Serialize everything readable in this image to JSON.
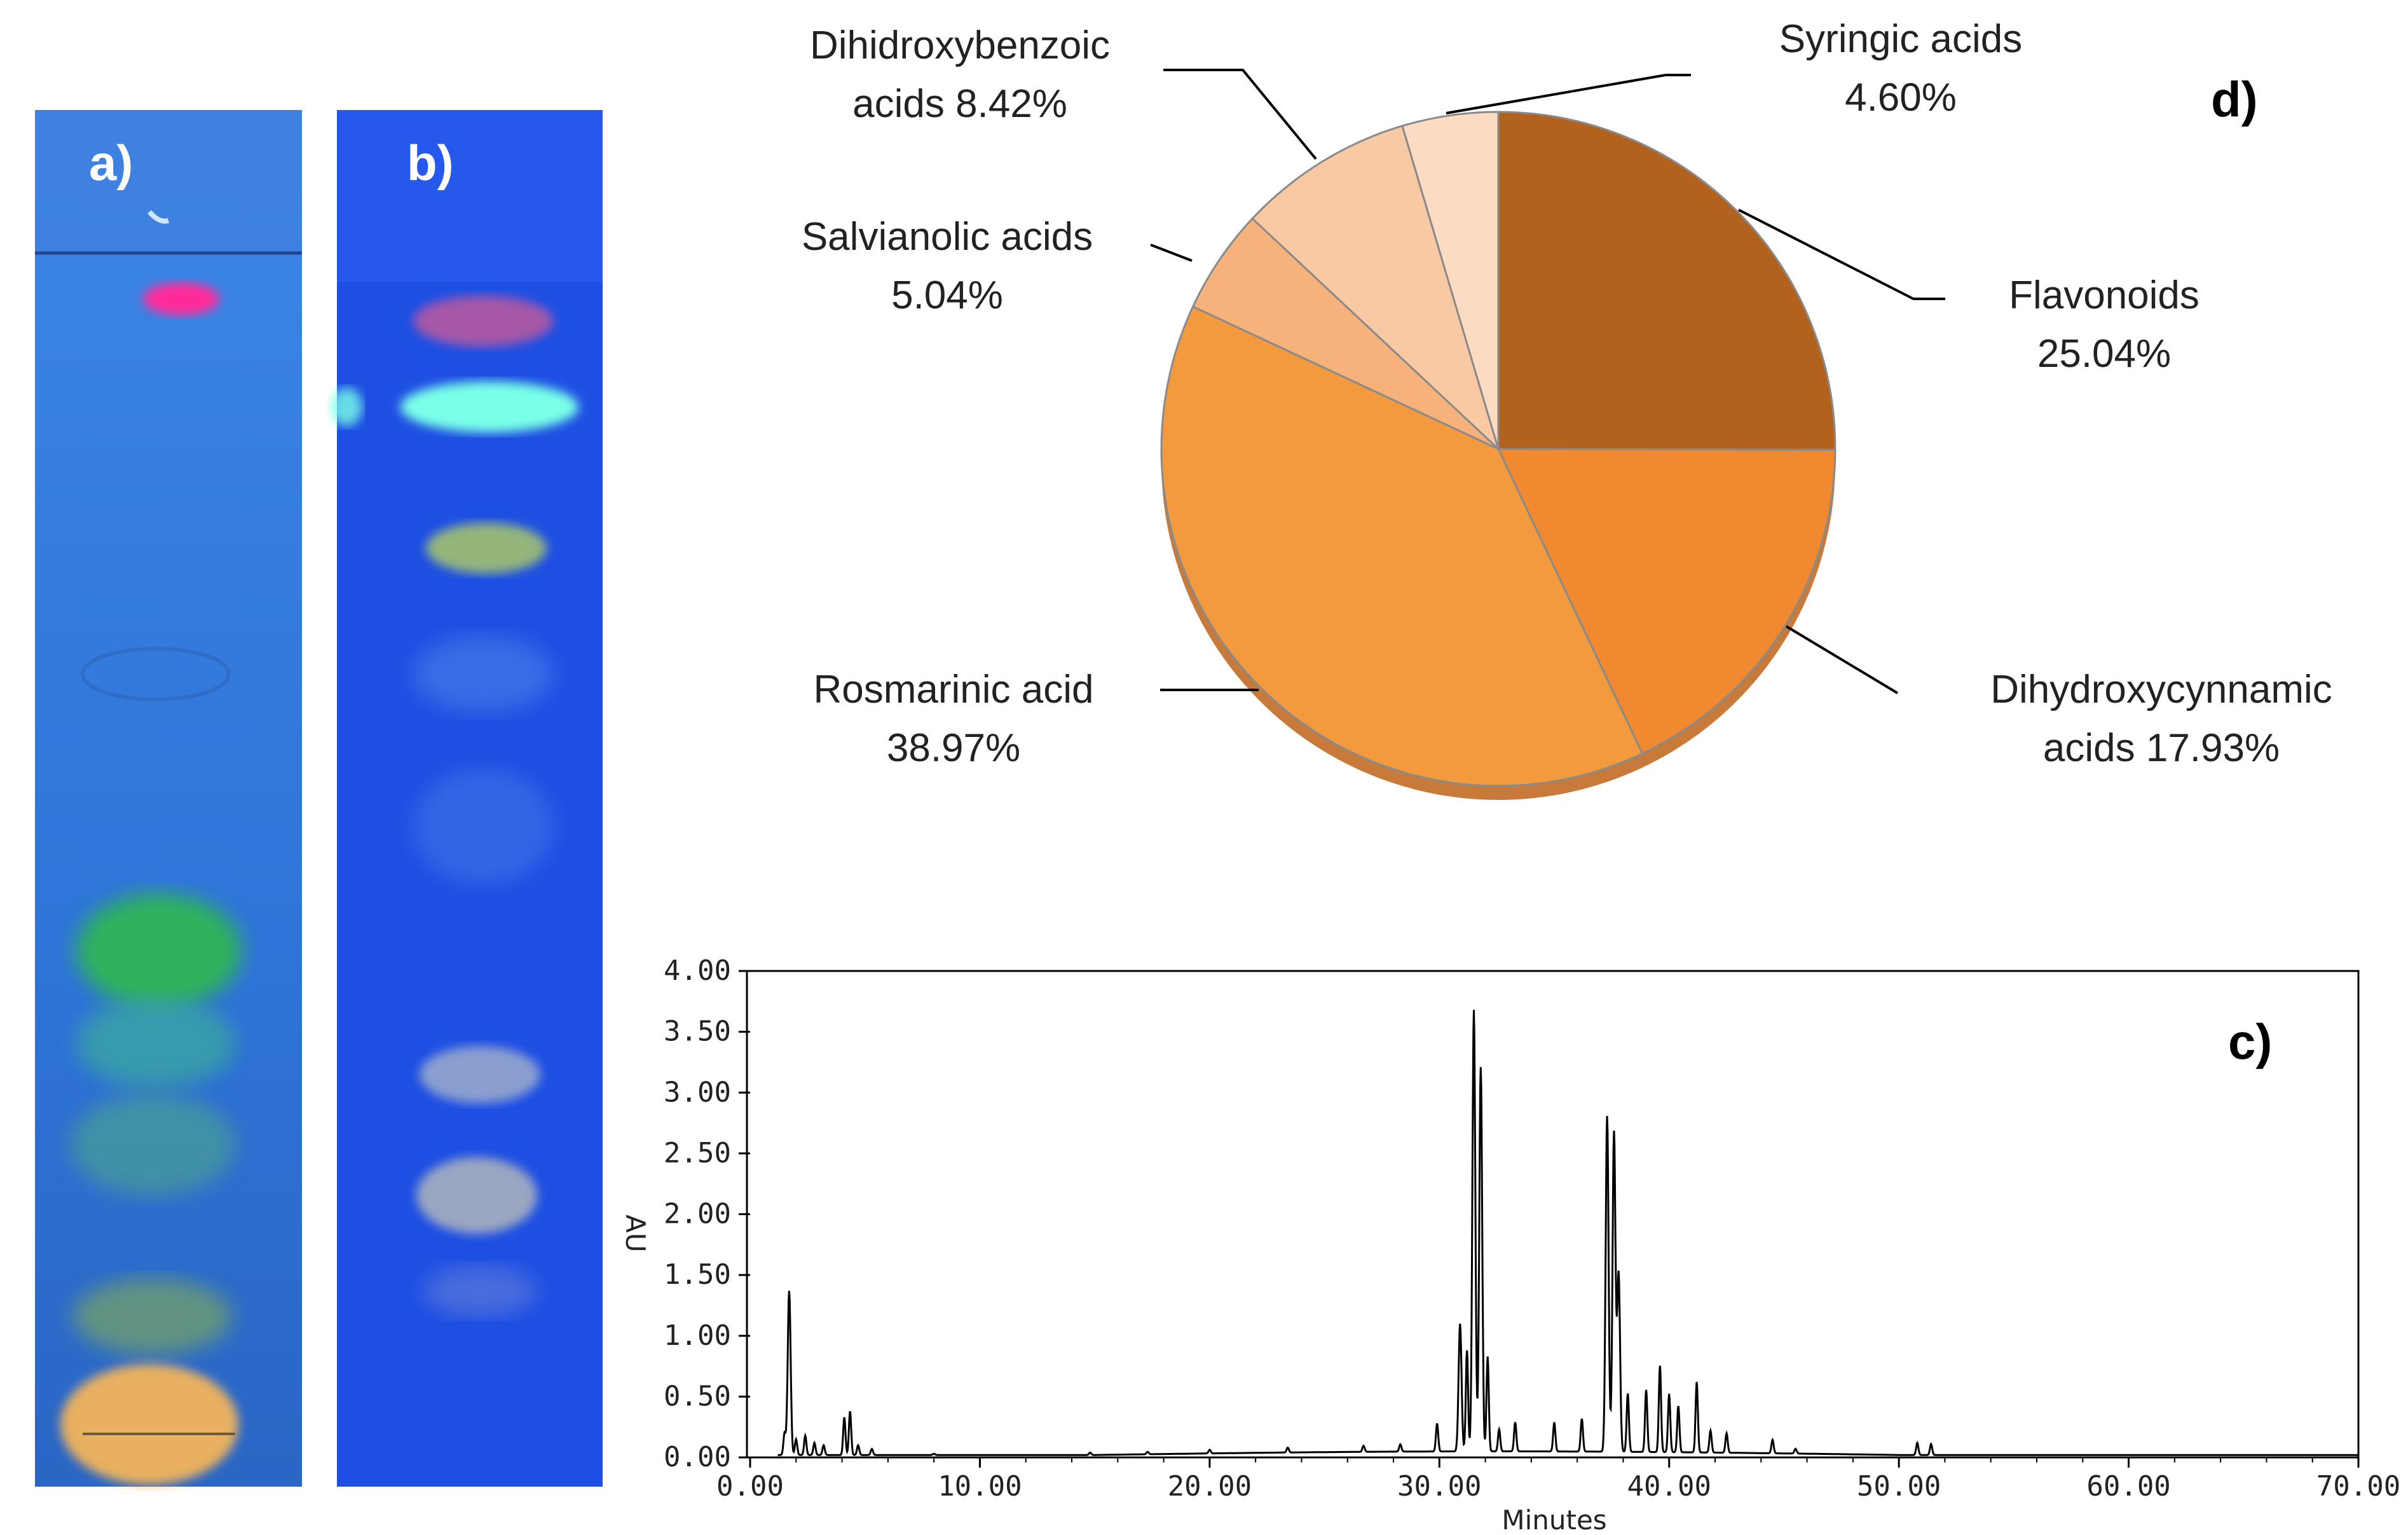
{
  "panels": {
    "a": {
      "label": "a)"
    },
    "b": {
      "label": "b)"
    },
    "c": {
      "label": "c)"
    },
    "d": {
      "label": "d)"
    }
  },
  "colors": {
    "plate_a_bg": "#2f74d8",
    "plate_b_bg": "#1e4fe3",
    "pie_flavonoids": "#b3621e",
    "pie_dihydroxycynnamic": "#f0892f",
    "pie_rosmarinic": "#f39a3e",
    "pie_salvianolic": "#f6b27a",
    "pie_dihidroxybenzoic": "#f8c9a2",
    "pie_syringic": "#fbdcc3",
    "trace": "#000000"
  },
  "chart_data": [
    {
      "type": "pie",
      "panel": "d",
      "slices": [
        {
          "name": "Flavonoids",
          "value": 25.04,
          "label_lines": [
            "Flavonoids",
            "25.04%"
          ]
        },
        {
          "name": "Dihydroxycynnamic acids",
          "value": 17.93,
          "label_lines": [
            "Dihydroxycynnamic",
            "acids 17.93%"
          ]
        },
        {
          "name": "Rosmarinic acid",
          "value": 38.97,
          "label_lines": [
            "Rosmarinic acid",
            "38.97%"
          ]
        },
        {
          "name": "Salvianolic acids",
          "value": 5.04,
          "label_lines": [
            "Salvianolic acids",
            "5.04%"
          ]
        },
        {
          "name": "Dihidroxybenzoic acids",
          "value": 8.42,
          "label_lines": [
            "Dihidroxybenzoic",
            "acids 8.42%"
          ]
        },
        {
          "name": "Syringic acids",
          "value": 4.6,
          "label_lines": [
            "Syringic acids",
            "4.60%"
          ]
        }
      ]
    },
    {
      "type": "line",
      "panel": "c",
      "xlabel": "Minutes",
      "ylabel": "AU",
      "xlim": [
        0,
        70
      ],
      "ylim": [
        0,
        4
      ],
      "xticks": [
        "0.00",
        "10.00",
        "20.00",
        "30.00",
        "40.00",
        "50.00",
        "60.00",
        "70.00"
      ],
      "yticks": [
        "0.00",
        "0.50",
        "1.00",
        "1.50",
        "2.00",
        "2.50",
        "3.00",
        "3.50",
        "4.00"
      ],
      "baseline": 0.02,
      "peaks": [
        {
          "x": 1.5,
          "y": 0.2
        },
        {
          "x": 1.7,
          "y": 1.37
        },
        {
          "x": 2.0,
          "y": 0.15
        },
        {
          "x": 2.4,
          "y": 0.18
        },
        {
          "x": 2.8,
          "y": 0.12
        },
        {
          "x": 3.2,
          "y": 0.1
        },
        {
          "x": 4.1,
          "y": 0.33
        },
        {
          "x": 4.35,
          "y": 0.38
        },
        {
          "x": 4.7,
          "y": 0.1
        },
        {
          "x": 5.3,
          "y": 0.07
        },
        {
          "x": 8.0,
          "y": 0.03
        },
        {
          "x": 14.8,
          "y": 0.04
        },
        {
          "x": 17.3,
          "y": 0.04
        },
        {
          "x": 20.0,
          "y": 0.05
        },
        {
          "x": 23.4,
          "y": 0.06
        },
        {
          "x": 26.7,
          "y": 0.07
        },
        {
          "x": 28.3,
          "y": 0.08
        },
        {
          "x": 29.9,
          "y": 0.25
        },
        {
          "x": 30.9,
          "y": 1.07
        },
        {
          "x": 31.2,
          "y": 0.85
        },
        {
          "x": 31.5,
          "y": 3.65
        },
        {
          "x": 31.8,
          "y": 3.18
        },
        {
          "x": 32.1,
          "y": 0.8
        },
        {
          "x": 32.6,
          "y": 0.2
        },
        {
          "x": 33.3,
          "y": 0.26
        },
        {
          "x": 35.0,
          "y": 0.26
        },
        {
          "x": 36.2,
          "y": 0.29
        },
        {
          "x": 37.3,
          "y": 2.78
        },
        {
          "x": 37.6,
          "y": 2.65
        },
        {
          "x": 37.8,
          "y": 1.49
        },
        {
          "x": 38.2,
          "y": 0.5
        },
        {
          "x": 39.0,
          "y": 0.53
        },
        {
          "x": 39.6,
          "y": 0.73
        },
        {
          "x": 40.0,
          "y": 0.5
        },
        {
          "x": 40.4,
          "y": 0.4
        },
        {
          "x": 41.2,
          "y": 0.6
        },
        {
          "x": 41.8,
          "y": 0.2
        },
        {
          "x": 42.5,
          "y": 0.18
        },
        {
          "x": 44.5,
          "y": 0.13
        },
        {
          "x": 45.5,
          "y": 0.06
        },
        {
          "x": 50.8,
          "y": 0.12
        },
        {
          "x": 51.4,
          "y": 0.11
        },
        {
          "x": 56.5,
          "y": 0.02
        }
      ]
    }
  ]
}
